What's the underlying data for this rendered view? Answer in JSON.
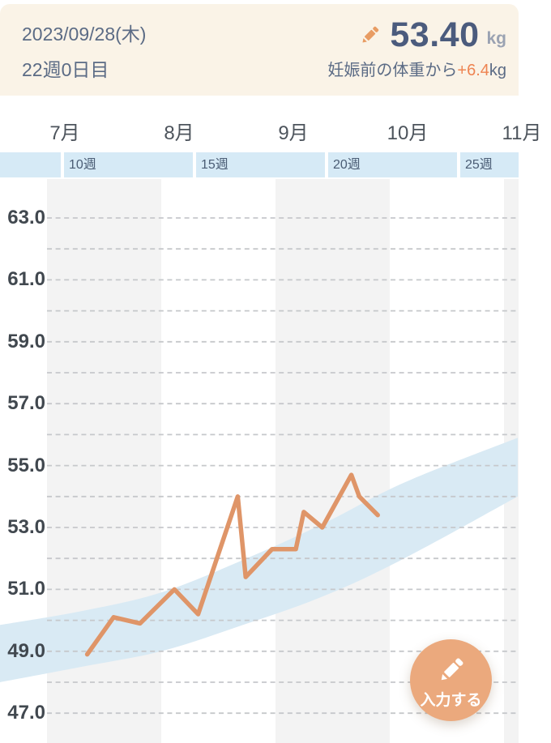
{
  "header": {
    "date": "2023/09/28(木)",
    "week_day": "22週0日目",
    "weight_value": "53.40",
    "weight_unit": "kg",
    "delta_prefix": "妊娠前の体重から",
    "delta_value": "+6.4",
    "delta_unit": "kg"
  },
  "fab": {
    "label": "入力する"
  },
  "colors": {
    "header_bg": "#faf3e7",
    "header_text": "#5b6b85",
    "weight_text": "#4b5b7d",
    "delta_orange": "#ee8452",
    "pencil_orange": "#e89c63",
    "line": "#df9568",
    "band_fill": "#d9eaf4",
    "week_band_bg": "#d6eaf6",
    "alt_column": "#f3f3f3",
    "grid": "#c6c8cb",
    "fab_bg": "#eba97d"
  },
  "chart_data": {
    "type": "line",
    "x_months": [
      {
        "label": "7月",
        "x": 58
      },
      {
        "label": "8月",
        "x": 199
      },
      {
        "label": "9月",
        "x": 340
      },
      {
        "label": "10月",
        "x": 481
      },
      {
        "label": "11月",
        "x": 622
      }
    ],
    "week_ticks": [
      {
        "label": "10週",
        "week": 10
      },
      {
        "label": "15週",
        "week": 15
      },
      {
        "label": "20週",
        "week": 20
      },
      {
        "label": "25週",
        "week": 25
      }
    ],
    "y_axis": {
      "min": 47,
      "max": 63,
      "grid_step": 1,
      "label_step": 2,
      "unit": "kg"
    },
    "series": [
      {
        "name": "weight_kg_by_week",
        "points": [
          [
            11.0,
            48.9
          ],
          [
            12.0,
            50.1
          ],
          [
            13.0,
            49.9
          ],
          [
            14.3,
            51.0
          ],
          [
            15.2,
            50.2
          ],
          [
            16.7,
            54.0
          ],
          [
            17.0,
            51.4
          ],
          [
            18.0,
            52.3
          ],
          [
            18.9,
            52.3
          ],
          [
            19.2,
            53.5
          ],
          [
            19.9,
            53.0
          ],
          [
            21.0,
            54.7
          ],
          [
            21.3,
            54.0
          ],
          [
            22.0,
            53.4
          ]
        ]
      }
    ],
    "recommended_band": {
      "upper": [
        [
          7.7,
          49.85
        ],
        [
          10.8,
          50.3
        ],
        [
          13.8,
          50.9
        ],
        [
          16.9,
          51.95
        ],
        [
          20.0,
          53.15
        ],
        [
          23.0,
          54.45
        ],
        [
          27.3,
          55.9
        ]
      ],
      "lower": [
        [
          7.7,
          48.0
        ],
        [
          10.8,
          48.5
        ],
        [
          13.8,
          49.0
        ],
        [
          16.9,
          49.85
        ],
        [
          20.0,
          50.8
        ],
        [
          23.0,
          52.0
        ],
        [
          27.3,
          54.0
        ]
      ]
    },
    "current": {
      "week": 22,
      "kg": 53.4
    }
  }
}
